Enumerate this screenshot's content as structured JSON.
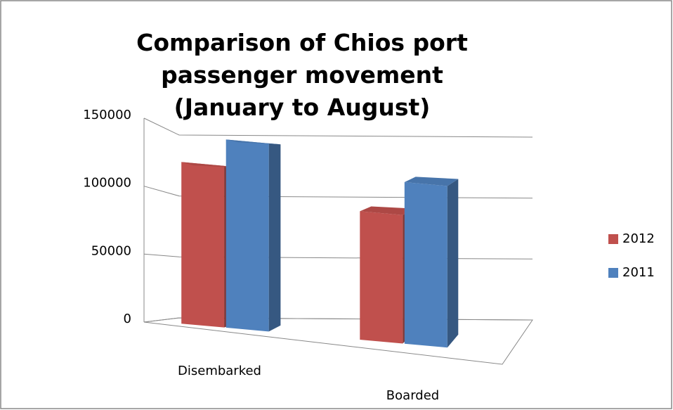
{
  "chart_data": {
    "type": "bar3d",
    "title": "Comparison of Chios port passenger movement (January to August)",
    "categories": [
      "Disembarked",
      "Boarded"
    ],
    "series": [
      {
        "name": "2012",
        "color": "#c0504d",
        "values": [
          122000,
          97000
        ]
      },
      {
        "name": "2011",
        "color": "#4f81bd",
        "values": [
          142000,
          122000
        ]
      }
    ],
    "ylim": [
      0,
      150000
    ],
    "yticks": [
      0,
      50000,
      100000,
      150000
    ],
    "grid": true,
    "legend": "right"
  }
}
